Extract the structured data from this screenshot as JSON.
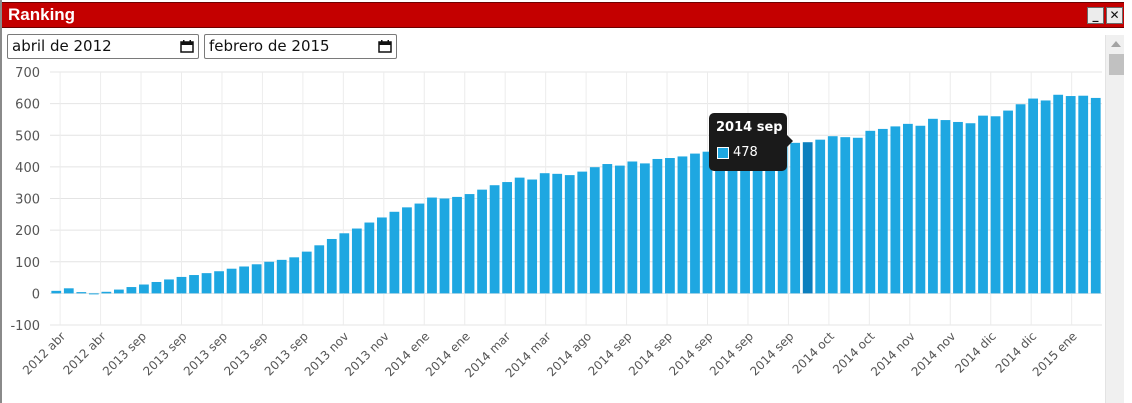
{
  "window": {
    "title": "Ranking",
    "minimize_label": "_",
    "close_label": "✕"
  },
  "filters": {
    "start_date": "abril de 2012",
    "end_date": "febrero de 2015",
    "calendar_icon": "calendar-icon"
  },
  "tooltip": {
    "title": "2014 sep",
    "value": "478"
  },
  "colors": {
    "titlebar": "#c40000",
    "bar": "#1ea7e1",
    "bar_highlight": "#0c7fbe"
  },
  "chart_data": {
    "type": "bar",
    "title": "",
    "xlabel": "",
    "ylabel": "",
    "ylim": [
      -100,
      700
    ],
    "yticks": [
      -100,
      0,
      100,
      200,
      300,
      400,
      500,
      600,
      700
    ],
    "grid": true,
    "legend": "none",
    "highlighted_index": 60,
    "x_tick_labels": [
      "2012 abr",
      "2012 abr",
      "2013 sep",
      "2013 sep",
      "2013 sep",
      "2013 sep",
      "2013 sep",
      "2013 nov",
      "2013 nov",
      "2014 ene",
      "2014 ene",
      "2014 mar",
      "2014 mar",
      "2014 ago",
      "2014 sep",
      "2014 sep",
      "2014 sep",
      "2014 sep",
      "2014 sep",
      "2014 oct",
      "2014 oct",
      "2014 nov",
      "2014 nov",
      "2014 dic",
      "2014 dic",
      "2015 ene"
    ],
    "values": [
      8,
      16,
      4,
      -2,
      5,
      12,
      20,
      28,
      36,
      44,
      52,
      58,
      64,
      70,
      78,
      85,
      92,
      100,
      106,
      114,
      132,
      152,
      172,
      190,
      205,
      224,
      240,
      258,
      272,
      284,
      303,
      300,
      305,
      314,
      328,
      342,
      352,
      366,
      360,
      380,
      378,
      374,
      385,
      399,
      409,
      404,
      417,
      411,
      425,
      428,
      433,
      442,
      448,
      452,
      458,
      462,
      466,
      470,
      474,
      476,
      478,
      486,
      497,
      494,
      492,
      514,
      520,
      528,
      536,
      530,
      552,
      548,
      542,
      538,
      562,
      560,
      578,
      598,
      616,
      610,
      628,
      624,
      625,
      618
    ]
  }
}
